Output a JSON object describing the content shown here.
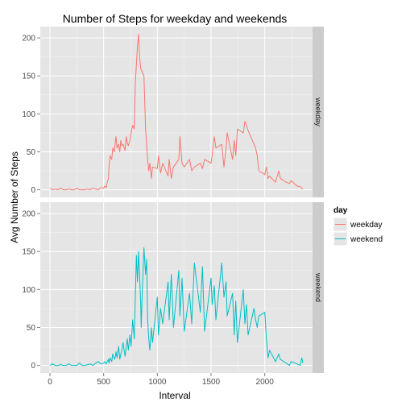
{
  "chart_data": {
    "type": "line",
    "title": "Number of Steps for weekday and weekends",
    "xlabel": "Interval",
    "ylabel": "Avg Number of Steps",
    "xlim": [
      -90,
      2445
    ],
    "ylim": [
      -10,
      215
    ],
    "x_ticks": [
      0,
      500,
      1000,
      1500,
      2000
    ],
    "y_ticks": [
      0,
      50,
      100,
      150,
      200
    ],
    "grid": true,
    "legend": {
      "title": "day",
      "placement": "right",
      "entries": [
        "weekday",
        "weekend"
      ]
    },
    "colors": {
      "weekday": "#F8766D",
      "weekend": "#00BFC4"
    },
    "facets": [
      "weekday",
      "weekend"
    ],
    "series": [
      {
        "name": "weekday",
        "x": [
          0,
          25,
          50,
          75,
          100,
          125,
          150,
          175,
          200,
          225,
          250,
          275,
          300,
          325,
          350,
          375,
          400,
          425,
          450,
          475,
          500,
          510,
          525,
          530,
          545,
          550,
          560,
          575,
          585,
          600,
          610,
          615,
          625,
          640,
          650,
          660,
          670,
          680,
          700,
          710,
          720,
          730,
          745,
          755,
          770,
          785,
          795,
          805,
          815,
          825,
          835,
          845,
          850,
          860,
          875,
          890,
          900,
          910,
          920,
          930,
          945,
          955,
          1000,
          1010,
          1030,
          1050,
          1100,
          1110,
          1130,
          1150,
          1200,
          1210,
          1230,
          1250,
          1300,
          1320,
          1345,
          1400,
          1420,
          1440,
          1500,
          1510,
          1530,
          1545,
          1600,
          1620,
          1640,
          1650,
          1700,
          1715,
          1730,
          1745,
          1800,
          1815,
          1830,
          1845,
          1900,
          1915,
          1930,
          1945,
          2000,
          2015,
          2030,
          2045,
          2100,
          2130,
          2145,
          2200,
          2230,
          2245,
          2300,
          2330,
          2345,
          2355
        ],
        "y": [
          2,
          0,
          1,
          0,
          2,
          0,
          0,
          1,
          0,
          0,
          2,
          0,
          0,
          0,
          1,
          0,
          2,
          1,
          0,
          3,
          2,
          5,
          3,
          8,
          15,
          30,
          45,
          40,
          55,
          50,
          65,
          70,
          55,
          60,
          50,
          65,
          58,
          60,
          52,
          70,
          62,
          58,
          65,
          75,
          85,
          80,
          140,
          165,
          190,
          205,
          175,
          160,
          158,
          155,
          150,
          80,
          60,
          40,
          25,
          35,
          15,
          30,
          28,
          45,
          22,
          35,
          18,
          40,
          15,
          30,
          40,
          70,
          35,
          30,
          40,
          25,
          30,
          35,
          28,
          40,
          35,
          45,
          70,
          55,
          60,
          30,
          55,
          75,
          40,
          65,
          45,
          80,
          75,
          90,
          85,
          78,
          60,
          55,
          45,
          25,
          20,
          30,
          15,
          18,
          10,
          25,
          15,
          10,
          8,
          12,
          5,
          4,
          2,
          1
        ]
      },
      {
        "name": "weekend",
        "x": [
          0,
          25,
          50,
          75,
          100,
          125,
          150,
          175,
          200,
          225,
          250,
          275,
          300,
          325,
          350,
          375,
          400,
          425,
          450,
          475,
          500,
          510,
          525,
          530,
          545,
          550,
          560,
          575,
          585,
          600,
          610,
          615,
          625,
          640,
          650,
          660,
          670,
          680,
          700,
          710,
          720,
          730,
          745,
          755,
          770,
          785,
          795,
          805,
          815,
          825,
          835,
          845,
          850,
          860,
          875,
          890,
          900,
          910,
          920,
          930,
          945,
          955,
          1000,
          1010,
          1030,
          1050,
          1100,
          1110,
          1130,
          1150,
          1200,
          1210,
          1230,
          1250,
          1300,
          1320,
          1345,
          1400,
          1420,
          1440,
          1500,
          1510,
          1530,
          1545,
          1600,
          1620,
          1640,
          1650,
          1700,
          1715,
          1730,
          1745,
          1800,
          1815,
          1830,
          1845,
          1900,
          1915,
          1930,
          1945,
          2000,
          2015,
          2030,
          2045,
          2100,
          2130,
          2145,
          2200,
          2230,
          2245,
          2300,
          2330,
          2345,
          2355
        ],
        "y": [
          0,
          2,
          0,
          0,
          1,
          0,
          0,
          2,
          0,
          0,
          0,
          3,
          0,
          0,
          1,
          2,
          0,
          3,
          5,
          2,
          3,
          5,
          2,
          4,
          8,
          3,
          10,
          5,
          15,
          8,
          12,
          18,
          10,
          25,
          8,
          15,
          20,
          30,
          12,
          25,
          35,
          20,
          40,
          25,
          60,
          35,
          90,
          145,
          110,
          150,
          120,
          80,
          50,
          100,
          155,
          120,
          140,
          60,
          35,
          20,
          50,
          30,
          90,
          40,
          75,
          55,
          110,
          60,
          120,
          50,
          125,
          65,
          115,
          45,
          95,
          55,
          135,
          70,
          130,
          45,
          115,
          80,
          105,
          60,
          135,
          90,
          110,
          65,
          95,
          40,
          85,
          30,
          100,
          55,
          80,
          40,
          75,
          60,
          50,
          65,
          70,
          35,
          10,
          20,
          5,
          15,
          8,
          3,
          0,
          5,
          2,
          0,
          10,
          3
        ]
      }
    ]
  }
}
